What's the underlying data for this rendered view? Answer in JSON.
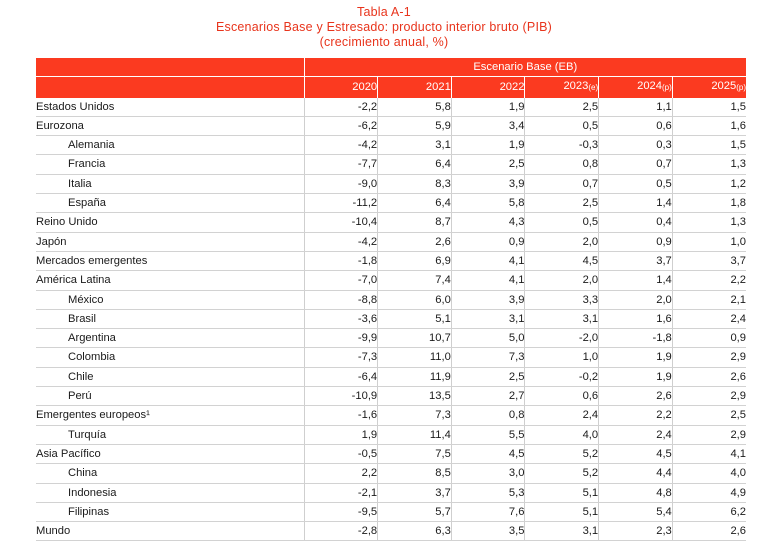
{
  "title": {
    "line1": "Tabla A-1",
    "line2": "Escenarios Base y Estresado: producto interior bruto (PIB)",
    "line3": "(crecimiento anual, %)"
  },
  "table": {
    "group_header": "Escenario Base (EB)",
    "columns": [
      {
        "year": "2020",
        "tag": ""
      },
      {
        "year": "2021",
        "tag": ""
      },
      {
        "year": "2022",
        "tag": ""
      },
      {
        "year": "2023",
        "tag": "(e)"
      },
      {
        "year": "2024",
        "tag": "(p)"
      },
      {
        "year": "2025",
        "tag": "(p)"
      }
    ],
    "rows": [
      {
        "label": "Estados Unidos",
        "indent": false,
        "values": [
          "-2,2",
          "5,8",
          "1,9",
          "2,5",
          "1,1",
          "1,5"
        ]
      },
      {
        "label": "Eurozona",
        "indent": false,
        "values": [
          "-6,2",
          "5,9",
          "3,4",
          "0,5",
          "0,6",
          "1,6"
        ]
      },
      {
        "label": "Alemania",
        "indent": true,
        "values": [
          "-4,2",
          "3,1",
          "1,9",
          "-0,3",
          "0,3",
          "1,5"
        ]
      },
      {
        "label": "Francia",
        "indent": true,
        "values": [
          "-7,7",
          "6,4",
          "2,5",
          "0,8",
          "0,7",
          "1,3"
        ]
      },
      {
        "label": "Italia",
        "indent": true,
        "values": [
          "-9,0",
          "8,3",
          "3,9",
          "0,7",
          "0,5",
          "1,2"
        ]
      },
      {
        "label": "España",
        "indent": true,
        "values": [
          "-11,2",
          "6,4",
          "5,8",
          "2,5",
          "1,4",
          "1,8"
        ]
      },
      {
        "label": "Reino Unido",
        "indent": false,
        "values": [
          "-10,4",
          "8,7",
          "4,3",
          "0,5",
          "0,4",
          "1,3"
        ]
      },
      {
        "label": "Japón",
        "indent": false,
        "values": [
          "-4,2",
          "2,6",
          "0,9",
          "2,0",
          "0,9",
          "1,0"
        ]
      },
      {
        "label": "Mercados emergentes",
        "indent": false,
        "values": [
          "-1,8",
          "6,9",
          "4,1",
          "4,5",
          "3,7",
          "3,7"
        ]
      },
      {
        "label": "América Latina",
        "indent": false,
        "values": [
          "-7,0",
          "7,4",
          "4,1",
          "2,0",
          "1,4",
          "2,2"
        ]
      },
      {
        "label": "México",
        "indent": true,
        "values": [
          "-8,8",
          "6,0",
          "3,9",
          "3,3",
          "2,0",
          "2,1"
        ]
      },
      {
        "label": "Brasil",
        "indent": true,
        "values": [
          "-3,6",
          "5,1",
          "3,1",
          "3,1",
          "1,6",
          "2,4"
        ]
      },
      {
        "label": "Argentina",
        "indent": true,
        "values": [
          "-9,9",
          "10,7",
          "5,0",
          "-2,0",
          "-1,8",
          "0,9"
        ]
      },
      {
        "label": "Colombia",
        "indent": true,
        "values": [
          "-7,3",
          "11,0",
          "7,3",
          "1,0",
          "1,9",
          "2,9"
        ]
      },
      {
        "label": "Chile",
        "indent": true,
        "values": [
          "-6,4",
          "11,9",
          "2,5",
          "-0,2",
          "1,9",
          "2,6"
        ]
      },
      {
        "label": "Perú",
        "indent": true,
        "values": [
          "-10,9",
          "13,5",
          "2,7",
          "0,6",
          "2,6",
          "2,9"
        ]
      },
      {
        "label": "Emergentes europeos¹",
        "indent": false,
        "values": [
          "-1,6",
          "7,3",
          "0,8",
          "2,4",
          "2,2",
          "2,5"
        ]
      },
      {
        "label": "Turquía",
        "indent": true,
        "values": [
          "1,9",
          "11,4",
          "5,5",
          "4,0",
          "2,4",
          "2,9"
        ]
      },
      {
        "label": "Asia Pacífico",
        "indent": false,
        "values": [
          "-0,5",
          "7,5",
          "4,5",
          "5,2",
          "4,5",
          "4,1"
        ]
      },
      {
        "label": "China",
        "indent": true,
        "values": [
          "2,2",
          "8,5",
          "3,0",
          "5,2",
          "4,4",
          "4,0"
        ]
      },
      {
        "label": "Indonesia",
        "indent": true,
        "values": [
          "-2,1",
          "3,7",
          "5,3",
          "5,1",
          "4,8",
          "4,9"
        ]
      },
      {
        "label": "Filipinas",
        "indent": true,
        "values": [
          "-9,5",
          "5,7",
          "7,6",
          "5,1",
          "5,4",
          "6,2"
        ]
      },
      {
        "label": "Mundo",
        "indent": false,
        "values": [
          "-2,8",
          "6,3",
          "3,5",
          "3,1",
          "2,3",
          "2,6"
        ]
      }
    ]
  },
  "colors": {
    "header_bg": "#fb3a20",
    "title_text": "#e8341c"
  }
}
